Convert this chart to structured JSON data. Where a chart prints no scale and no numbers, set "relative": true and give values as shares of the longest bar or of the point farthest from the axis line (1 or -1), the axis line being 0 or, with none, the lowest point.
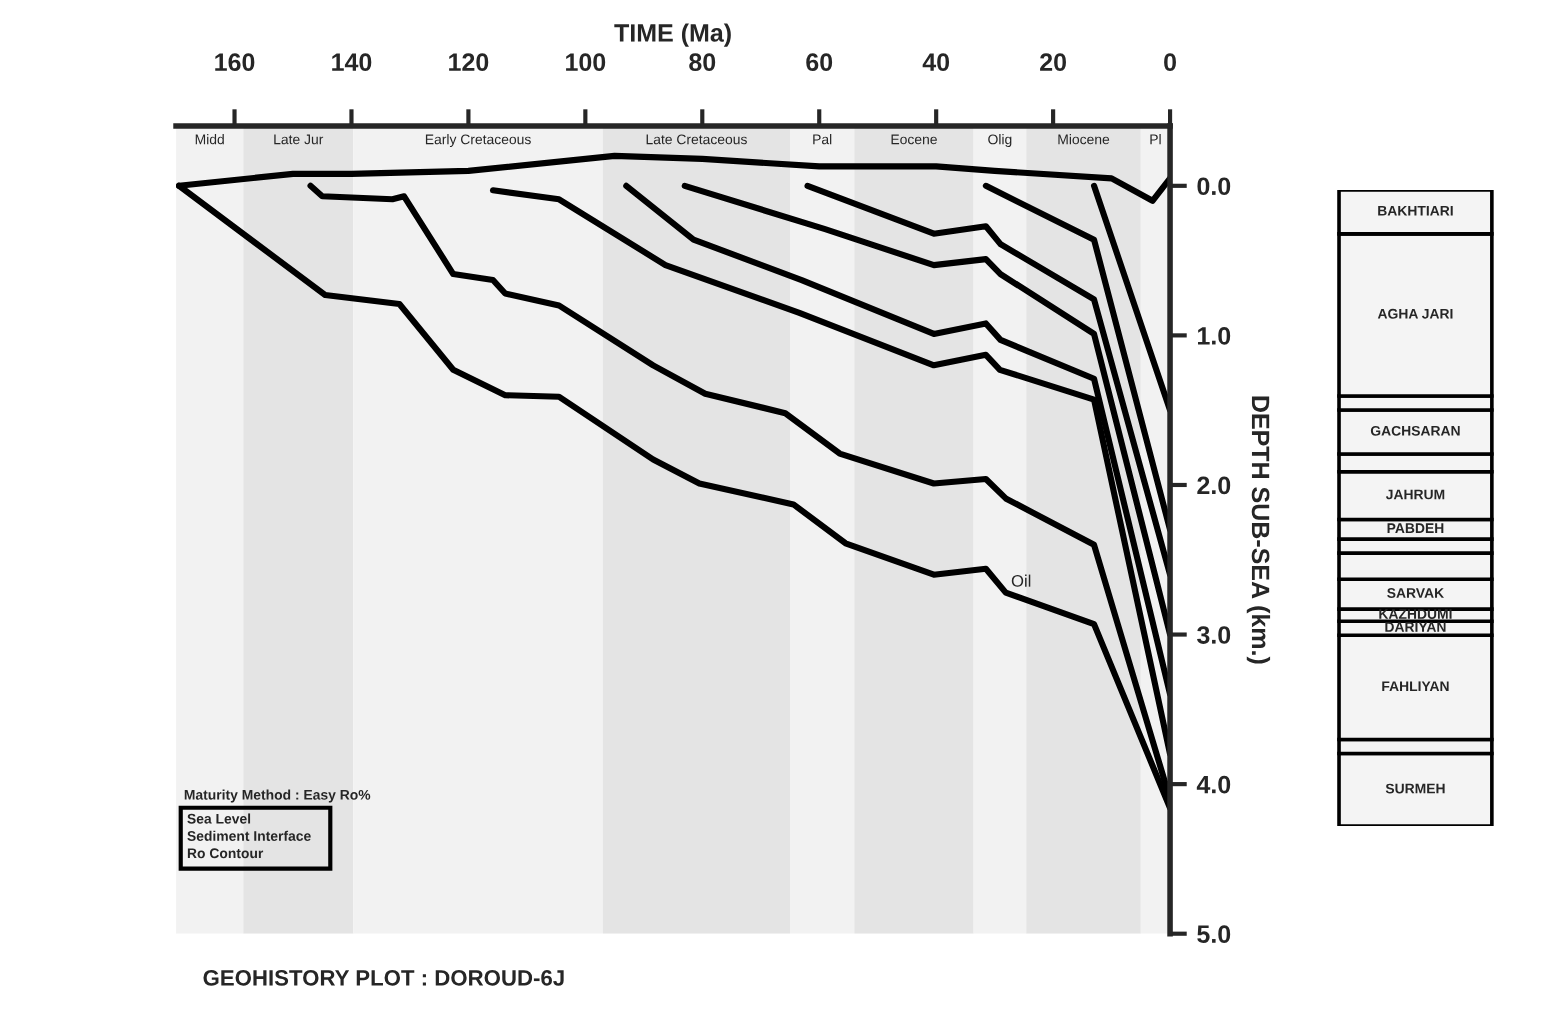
{
  "chart_data": [
    {
      "type": "line",
      "title": "GEOHISTORY PLOT : DOROUD-6J",
      "xlabel": "TIME (Ma)",
      "ylabel": "DEPTH SUB-SEA (km.)",
      "xlim": [
        170,
        0
      ],
      "xticks": [
        160,
        140,
        120,
        100,
        80,
        60,
        40,
        20,
        0
      ],
      "bands": [
        {
          "axis": "x",
          "from": 170,
          "to": 158.5,
          "label": "Midd",
          "color": "#f2f2f2"
        },
        {
          "axis": "x",
          "from": 158.5,
          "to": 139.7,
          "label": "Late Jur",
          "color": "#e4e4e4"
        },
        {
          "axis": "x",
          "from": 139.7,
          "to": 97,
          "label": "Early Cretaceous",
          "color": "#f2f2f2"
        },
        {
          "axis": "x",
          "from": 97,
          "to": 65,
          "label": "Late Cretaceous",
          "color": "#e4e4e4"
        },
        {
          "axis": "x",
          "from": 65,
          "to": 54,
          "label": "Pal",
          "color": "#f2f2f2"
        },
        {
          "axis": "x",
          "from": 54,
          "to": 33.6,
          "label": "Eocene",
          "color": "#e4e4e4"
        },
        {
          "axis": "x",
          "from": 33.6,
          "to": 24.6,
          "label": "Olig",
          "color": "#f2f2f2"
        },
        {
          "axis": "x",
          "from": 24.6,
          "to": 5,
          "label": "Miocene",
          "color": "#e4e4e4"
        },
        {
          "axis": "x",
          "from": 5,
          "to": 0,
          "label": "Pl",
          "color": "#f2f2f2"
        }
      ],
      "ylim": [
        5.0,
        -0.4
      ],
      "yticks": [
        {
          "value": 0,
          "label": "0.0"
        },
        {
          "value": 1,
          "label": "1.0"
        },
        {
          "value": 2,
          "label": "2.0"
        },
        {
          "value": 3,
          "label": "3.0"
        },
        {
          "value": 4,
          "label": "4.0"
        },
        {
          "value": 5,
          "label": "5.0"
        }
      ],
      "grid": false,
      "legend": false,
      "marker": "none",
      "line_style": "solid",
      "series": [
        {
          "color": "#000000",
          "x": [
            169.5,
            150,
            140,
            120,
            95,
            80,
            60,
            40,
            30,
            10,
            3,
            0
          ],
          "values": [
            0,
            -0.08,
            -0.08,
            -0.1,
            -0.2,
            -0.18,
            -0.13,
            -0.13,
            -0.1,
            -0.05,
            0.1,
            -0.05
          ]
        },
        {
          "color": "#000000",
          "x": [
            169.5,
            144.5,
            131.8,
            122.6,
            113.7,
            104.5,
            88.4,
            80.5,
            64.4,
            55.5,
            40.4,
            31.5,
            28.1,
            13,
            0
          ],
          "values": [
            0,
            0.73,
            0.79,
            1.23,
            1.4,
            1.41,
            1.83,
            1.99,
            2.13,
            2.39,
            2.6,
            2.56,
            2.72,
            2.93,
            4.16
          ]
        },
        {
          "color": "#000000",
          "x": [
            147,
            145,
            133,
            131,
            122.6,
            115.8,
            113.7,
            104.5,
            88.4,
            79.5,
            65.8,
            56.5,
            40.4,
            31.5,
            28.1,
            13,
            0
          ],
          "values": [
            0,
            0.07,
            0.09,
            0.07,
            0.59,
            0.63,
            0.72,
            0.8,
            1.2,
            1.39,
            1.52,
            1.79,
            1.99,
            1.96,
            2.09,
            2.4,
            4.1
          ]
        },
        {
          "color": "#000000",
          "x": [
            115.8,
            104.5,
            86.3,
            63.4,
            40.4,
            31.5,
            29.1,
            13,
            0
          ],
          "values": [
            0.03,
            0.09,
            0.53,
            0.85,
            1.2,
            1.13,
            1.23,
            1.43,
            3.8
          ]
        },
        {
          "color": "#000000",
          "x": [
            93,
            81.5,
            63,
            40.4,
            31.5,
            29,
            13,
            0
          ],
          "values": [
            0,
            0.36,
            0.63,
            0.99,
            0.92,
            1.03,
            1.29,
            3.4
          ]
        },
        {
          "color": "#000000",
          "x": [
            83,
            59,
            40.4,
            31.5,
            29,
            13,
            0
          ],
          "values": [
            0,
            0.29,
            0.53,
            0.49,
            0.59,
            0.99,
            3.0
          ]
        },
        {
          "color": "#000000",
          "x": [
            62,
            40.4,
            31.5,
            29,
            13,
            0
          ],
          "values": [
            0,
            0.32,
            0.27,
            0.39,
            0.76,
            2.6
          ]
        },
        {
          "color": "#000000",
          "x": [
            31.5,
            13,
            0
          ],
          "values": [
            0,
            0.36,
            2.3
          ]
        },
        {
          "color": "#000000",
          "x": [
            13,
            0
          ],
          "values": [
            0,
            1.5
          ]
        }
      ],
      "annotations": [
        "Oil",
        "Maturity Method : Easy Ro%",
        "Sea Level",
        "Sediment Interface",
        "Ro Contour"
      ]
    },
    {
      "type": "bar",
      "stacked": true,
      "relative": true,
      "categories": [
        null
      ],
      "legend": false,
      "series": [
        {
          "name": "SURMEH",
          "color": "#f4f4f4",
          "values": [
            0.114
          ]
        },
        {
          "color": "#f4f4f4",
          "values": [
            0.022
          ]
        },
        {
          "name": "FAHLIYAN",
          "color": "#f4f4f4",
          "values": [
            0.164
          ]
        },
        {
          "name": "DARIYAN",
          "color": "#f4f4f4",
          "values": [
            0.022
          ]
        },
        {
          "name": "KAZHDUMI",
          "color": "#f4f4f4",
          "values": [
            0.019
          ]
        },
        {
          "name": "SARVAK",
          "color": "#f4f4f4",
          "values": [
            0.047
          ]
        },
        {
          "color": "#f4f4f4",
          "values": [
            0.041
          ]
        },
        {
          "color": "#f4f4f4",
          "values": [
            0.022
          ]
        },
        {
          "name": "PABDEH",
          "color": "#f4f4f4",
          "values": [
            0.031
          ]
        },
        {
          "name": "JAHRUM",
          "color": "#f4f4f4",
          "values": [
            0.075
          ]
        },
        {
          "color": "#f4f4f4",
          "values": [
            0.028
          ]
        },
        {
          "name": "GACHSARAN",
          "color": "#f4f4f4",
          "values": [
            0.069
          ]
        },
        {
          "color": "#f4f4f4",
          "values": [
            0.022
          ]
        },
        {
          "name": "AGHA JARI",
          "color": "#f4f4f4",
          "values": [
            0.255
          ]
        },
        {
          "name": "BAKHTIARI",
          "color": "#f4f4f4",
          "values": [
            0.069
          ]
        }
      ]
    }
  ]
}
